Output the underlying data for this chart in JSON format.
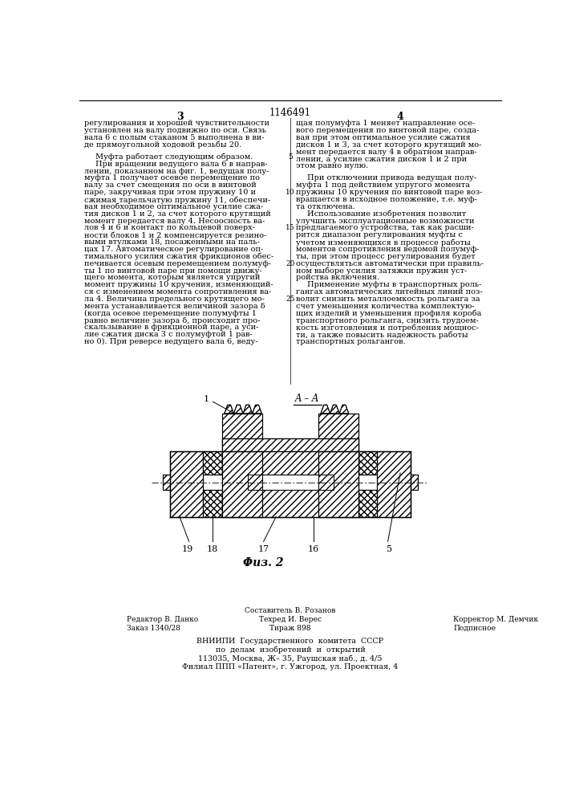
{
  "patent_number": "1146491",
  "page_left": "3",
  "page_right": "4",
  "col_left": "регулирования и хорошей чувствительности\nустановлен на валу подвижно по оси. Связь\nвала 6 с полым стаканом 5 выполнена в ви-\nде прямоугольной ходовой резьбы 20.\n\n    Муфта работает следующим образом.\n    При вращении ведущего вала 6 в направ-\nлении, показанном на фиг. 1, ведущая полу-\nмуфта 1 получает осевое перемещение по\nвалу за счет смещения по оси в винтовой\nпаре, закручивая при этом пружину 10 и\nсжимая тарельчатую пружину 11, обеспечи-\nвая необходимое оптимальное усилие сжа-\nтия дисков 1 и 2, за счет которого крутящий\nмомент передается валу 4. Несоосность ва-\nлов 4 и 6 и контакт по кольцевой поверх-\nности блоков 1 и 2 компенсируется резино-\nвыми втулками 18, посаженными на паль-\nцах 17. Автоматическое регулирование оп-\nтимального усилия сжатия фрикционов обес-\nпечивается осевым перемещением полумуф-\nты 1 по винтовой паре при помощи движу-\nщего момента, которым является упругий\nмомент пружины 10 кручения, изменяющий-\nся с изменением момента сопротивления ва-\nла 4. Величина предельного крутящего мо-\nмента устанавливается величиной зазора δ\n(когда осевое перемещение полумуфты 1\nравно величине зазора δ, происходит про-\nскальзывание в фрикционной паре, а уси-\nлие сжатия диска 3 с полумуфтой 1 рав-\nно 0). При реверсе ведущего вала 6, веду-",
  "col_right": "щая полумуфта 1 меняет направление осе-\nвого перемещения по винтовой паре, созда-\nвая при этом оптимальное усилие сжатия\nдисков 1 и 3, за счет которого крутящий мо-\nмент передается валу 4 в обратном направ-\nлении, а усилие сжатия дисков 1 и 2 при\nэтом равно нулю.\n\n    При отключении привода ведущая полу-\nмуфта 1 под действием упругого момента\nпружины 10 кручения по винтовой паре воз-\nвращается в исходное положение, т.е. муф-\nта отключена.\n    Использование изобретения позволит\nулучшить эксплуатационные возможности\nпредлагаемого устройства, так как расши-\nрится диапазон регулирования муфты с\nучетом изменяющихся в процессе работы\nмоментов сопротивления ведомой полумуф-\nты, при этом процесс регулирования будет\nосуществляться автоматически при правиль-\nном выборе усилия затяжки пружин уст-\nройства включения.\n    Применение муфты в транспортных роль-\nгангах автоматических литейных линий поз-\nволит снизить металлоемкость рольганга за\nсчет уменьшения количества комплектую-\nщих изделий и уменьшения профиля короба\nтранспортного рольганга, снизить трудоем-\nкость изготовления и потребления мощнос-\nти, а также повысить надежность работы\nтранспортных рольгангов.",
  "fig_caption": "Φиз. 2",
  "section_label": "A – A",
  "footer_col1_line1": "Редактор В. Данко",
  "footer_col1_line2": "Заказ 1340/28",
  "footer_col2_line0": "Составитель В. Розанов",
  "footer_col2_line1": "Техред И. Верес",
  "footer_col2_line2": "Тираж 898",
  "footer_col3_line1": "Корректор М. Демчик",
  "footer_col3_line2": "Подписное",
  "footer_vniipи": "ВНИИПИ  Государственного  комитета  СССР",
  "footer_line2": "по  делам  изобретений  и  открытий",
  "footer_line3": "113035, Москва, Ж– 35, Раушская наб., д. 4/5",
  "footer_line4": "Филиал ППП «Патент», г. Ужгород, ул. Проектная, 4",
  "bg_color": "#ffffff",
  "text_color": "#000000"
}
